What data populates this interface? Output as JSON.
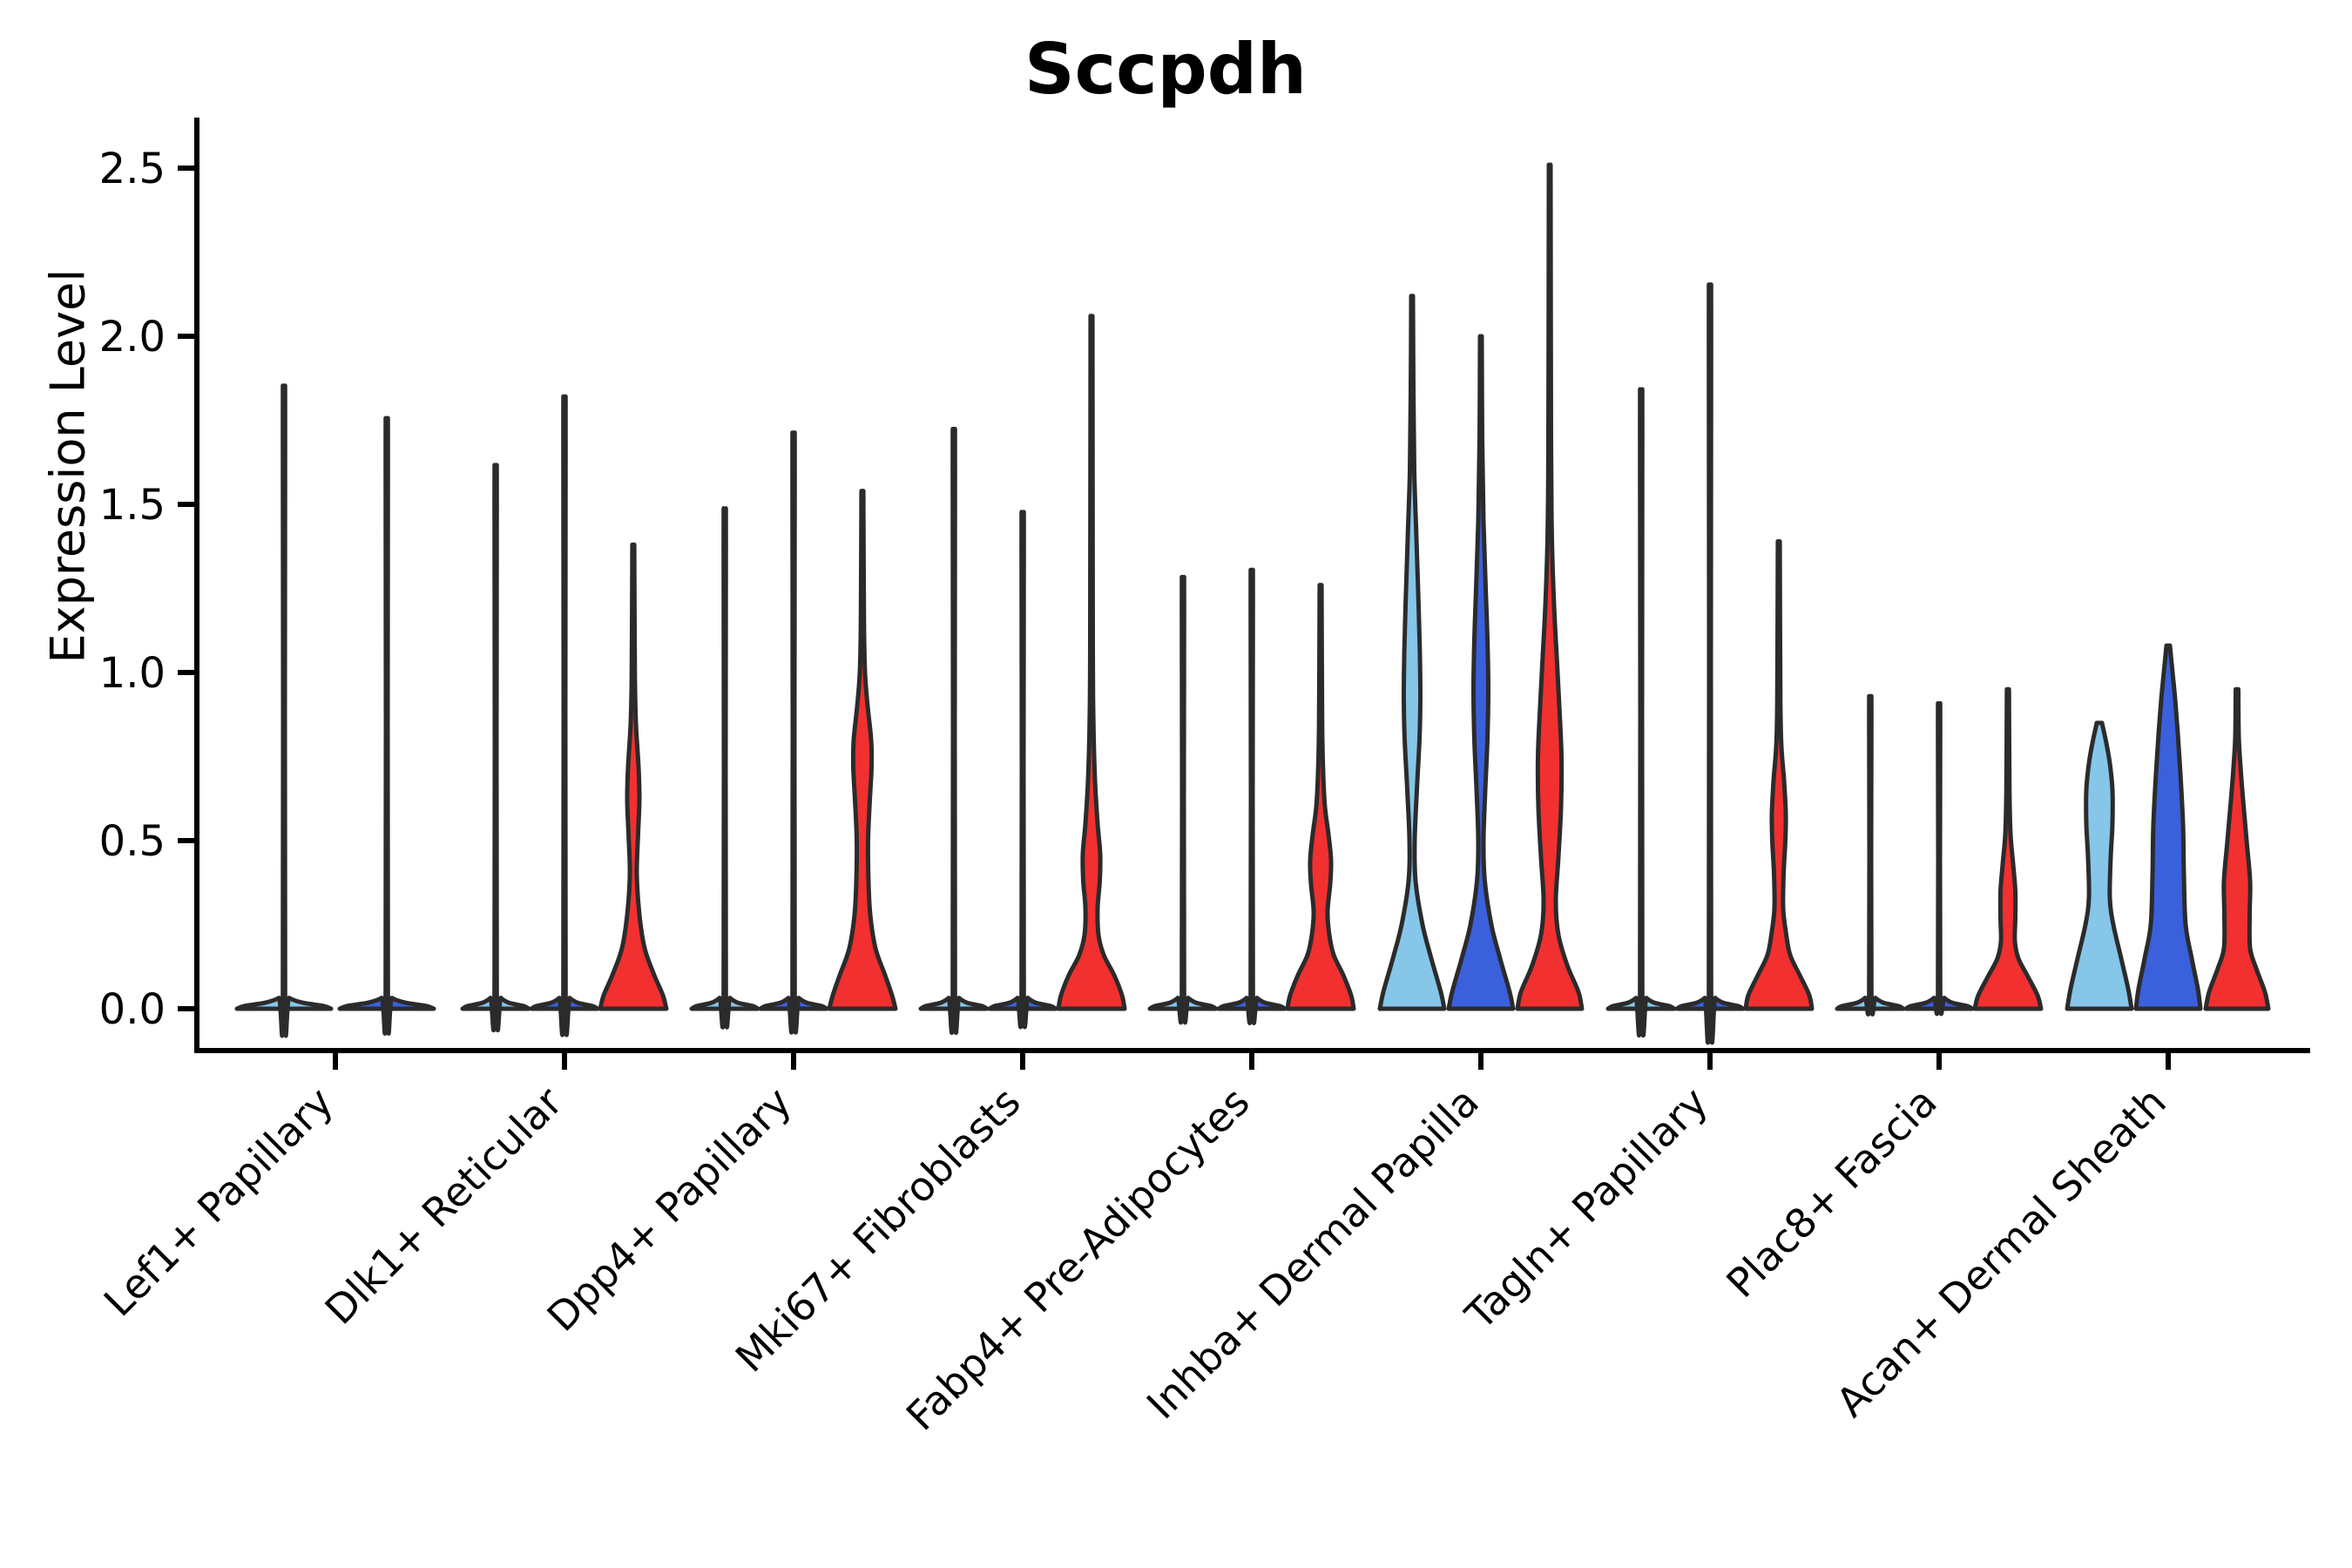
{
  "title": "Sccpdh",
  "axes": {
    "ylabel": "Expression Level",
    "ytick_labels": [
      "0.0",
      "0.5",
      "1.0",
      "1.5",
      "2.0",
      "2.5"
    ],
    "ytick_values": [
      0,
      0.5,
      1.0,
      1.5,
      2.0,
      2.5
    ]
  },
  "colors": {
    "light_blue": "#85C6E9",
    "dark_blue": "#3A60DC",
    "red": "#F23030",
    "outline": "#2B2B2B",
    "axis": "#000000"
  },
  "chart_data": {
    "type": "violin",
    "title": "Sccpdh",
    "xlabel": "",
    "ylabel": "Expression Level",
    "ylim": [
      0,
      2.6
    ],
    "yticks": [
      0,
      0.5,
      1.0,
      1.5,
      2.0,
      2.5
    ],
    "grid": false,
    "legend": "none",
    "series_colors": [
      "#85C6E9",
      "#3A60DC",
      "#F23030"
    ],
    "categories": [
      "Lef1+ Papillary",
      "Dlk1+ Reticular",
      "Dpp4+ Papillary",
      "Mki67+ Fibroblasts",
      "Fabp4+ Pre-Adipocytes",
      "Inhba+ Dermal Papilla",
      "Tagln+ Papillary",
      "Plac8+ Fascia",
      "Acan+ Dermal Sheath"
    ],
    "violins": [
      {
        "category": "Lef1+ Papillary",
        "groups": [
          {
            "color_key": "light_blue",
            "max": 1.75,
            "shape": "line"
          },
          {
            "color_key": "dark_blue",
            "max": 1.66,
            "shape": "line"
          }
        ]
      },
      {
        "category": "Dlk1+ Reticular",
        "groups": [
          {
            "color_key": "light_blue",
            "max": 1.53,
            "shape": "line"
          },
          {
            "color_key": "dark_blue",
            "max": 1.72,
            "shape": "line"
          },
          {
            "color_key": "red",
            "max": 1.38,
            "shape": "profile",
            "profile": [
              [
                0,
                38
              ],
              [
                0.04,
                34
              ],
              [
                0.1,
                24
              ],
              [
                0.18,
                13
              ],
              [
                0.28,
                7
              ],
              [
                0.4,
                4
              ],
              [
                0.52,
                5.5
              ],
              [
                0.62,
                7
              ],
              [
                0.72,
                6
              ],
              [
                0.85,
                3
              ],
              [
                1.0,
                1.8
              ],
              [
                1.38,
                1.1
              ]
            ]
          }
        ]
      },
      {
        "category": "Dpp4+ Papillary",
        "groups": [
          {
            "color_key": "light_blue",
            "max": 1.41,
            "shape": "line"
          },
          {
            "color_key": "dark_blue",
            "max": 1.62,
            "shape": "line"
          },
          {
            "color_key": "red",
            "max": 1.54,
            "shape": "profile",
            "profile": [
              [
                0,
                38
              ],
              [
                0.04,
                34
              ],
              [
                0.1,
                26
              ],
              [
                0.18,
                15
              ],
              [
                0.28,
                9
              ],
              [
                0.38,
                7
              ],
              [
                0.5,
                6.5
              ],
              [
                0.62,
                8.5
              ],
              [
                0.72,
                10.5
              ],
              [
                0.8,
                10
              ],
              [
                0.9,
                6
              ],
              [
                1.0,
                3
              ],
              [
                1.15,
                1.8
              ],
              [
                1.54,
                1.1
              ]
            ]
          }
        ]
      },
      {
        "category": "Mki67+ Fibroblasts",
        "groups": [
          {
            "color_key": "light_blue",
            "max": 1.63,
            "shape": "line"
          },
          {
            "color_key": "dark_blue",
            "max": 1.4,
            "shape": "line"
          },
          {
            "color_key": "red",
            "max": 2.06,
            "shape": "profile",
            "profile": [
              [
                0,
                38
              ],
              [
                0.04,
                35
              ],
              [
                0.1,
                26
              ],
              [
                0.16,
                14
              ],
              [
                0.22,
                8
              ],
              [
                0.3,
                7
              ],
              [
                0.38,
                9.5
              ],
              [
                0.46,
                10
              ],
              [
                0.55,
                7
              ],
              [
                0.68,
                4
              ],
              [
                0.85,
                2.2
              ],
              [
                1.1,
                1.5
              ],
              [
                2.06,
                1.1
              ]
            ]
          }
        ]
      },
      {
        "category": "Fabp4+ Pre-Adipocytes",
        "groups": [
          {
            "color_key": "light_blue",
            "max": 1.22,
            "shape": "line"
          },
          {
            "color_key": "dark_blue",
            "max": 1.24,
            "shape": "line"
          },
          {
            "color_key": "red",
            "max": 1.26,
            "shape": "profile",
            "profile": [
              [
                0,
                38
              ],
              [
                0.04,
                35
              ],
              [
                0.1,
                26
              ],
              [
                0.16,
                15
              ],
              [
                0.22,
                10
              ],
              [
                0.29,
                8
              ],
              [
                0.37,
                11
              ],
              [
                0.44,
                12
              ],
              [
                0.52,
                9
              ],
              [
                0.6,
                5
              ],
              [
                0.7,
                3
              ],
              [
                0.85,
                1.8
              ],
              [
                1.26,
                1.1
              ]
            ]
          }
        ]
      },
      {
        "category": "Inhba+ Dermal Papilla",
        "groups": [
          {
            "color_key": "light_blue",
            "max": 2.12,
            "shape": "profile",
            "profile": [
              [
                0,
                37
              ],
              [
                0.05,
                33
              ],
              [
                0.15,
                22
              ],
              [
                0.25,
                12
              ],
              [
                0.38,
                4
              ],
              [
                0.5,
                3
              ],
              [
                0.65,
                5.5
              ],
              [
                0.8,
                8.5
              ],
              [
                0.92,
                9.5
              ],
              [
                1.05,
                9
              ],
              [
                1.2,
                7.5
              ],
              [
                1.4,
                5
              ],
              [
                1.6,
                2.5
              ],
              [
                1.85,
                1.5
              ],
              [
                2.12,
                1
              ]
            ]
          },
          {
            "color_key": "dark_blue",
            "max": 2.0,
            "shape": "profile",
            "profile": [
              [
                0,
                37
              ],
              [
                0.05,
                33
              ],
              [
                0.15,
                22
              ],
              [
                0.25,
                12
              ],
              [
                0.38,
                4.5
              ],
              [
                0.5,
                3
              ],
              [
                0.65,
                5
              ],
              [
                0.8,
                7.5
              ],
              [
                0.95,
                8.5
              ],
              [
                1.1,
                7.5
              ],
              [
                1.25,
                5.5
              ],
              [
                1.45,
                3
              ],
              [
                1.7,
                1.5
              ],
              [
                2.0,
                1
              ]
            ]
          },
          {
            "color_key": "red",
            "max": 2.51,
            "shape": "profile",
            "profile": [
              [
                0,
                37
              ],
              [
                0.05,
                33
              ],
              [
                0.13,
                20
              ],
              [
                0.22,
                10
              ],
              [
                0.32,
                7
              ],
              [
                0.45,
                10
              ],
              [
                0.6,
                13
              ],
              [
                0.75,
                13.5
              ],
              [
                0.9,
                11
              ],
              [
                1.05,
                8
              ],
              [
                1.2,
                5
              ],
              [
                1.4,
                2.5
              ],
              [
                1.7,
                1.5
              ],
              [
                2.51,
                1
              ]
            ]
          }
        ]
      },
      {
        "category": "Tagln+ Papillary",
        "groups": [
          {
            "color_key": "light_blue",
            "max": 1.74,
            "shape": "line"
          },
          {
            "color_key": "dark_blue",
            "max": 2.03,
            "shape": "line"
          },
          {
            "color_key": "red",
            "max": 1.39,
            "shape": "profile",
            "profile": [
              [
                0,
                38
              ],
              [
                0.04,
                35
              ],
              [
                0.1,
                24
              ],
              [
                0.16,
                13
              ],
              [
                0.23,
                8
              ],
              [
                0.3,
                5
              ],
              [
                0.4,
                5.5
              ],
              [
                0.5,
                7.5
              ],
              [
                0.58,
                8
              ],
              [
                0.68,
                6
              ],
              [
                0.78,
                3
              ],
              [
                0.92,
                1.8
              ],
              [
                1.39,
                1.1
              ]
            ]
          }
        ]
      },
      {
        "category": "Plac8+ Fascia",
        "groups": [
          {
            "color_key": "light_blue",
            "max": 0.89,
            "shape": "line"
          },
          {
            "color_key": "dark_blue",
            "max": 0.87,
            "shape": "line"
          },
          {
            "color_key": "red",
            "max": 0.95,
            "shape": "profile",
            "profile": [
              [
                0,
                38
              ],
              [
                0.04,
                34
              ],
              [
                0.1,
                22
              ],
              [
                0.15,
                12
              ],
              [
                0.2,
                8
              ],
              [
                0.27,
                8.5
              ],
              [
                0.35,
                8.5
              ],
              [
                0.43,
                6
              ],
              [
                0.52,
                3
              ],
              [
                0.65,
                1.8
              ],
              [
                0.95,
                1.2
              ]
            ]
          }
        ]
      },
      {
        "category": "Acan+ Dermal Sheath",
        "groups": [
          {
            "color_key": "light_blue",
            "max": 0.85,
            "shape": "profile",
            "profile": [
              [
                0,
                37
              ],
              [
                0.06,
                33
              ],
              [
                0.15,
                25
              ],
              [
                0.25,
                16
              ],
              [
                0.33,
                12
              ],
              [
                0.45,
                13
              ],
              [
                0.55,
                15
              ],
              [
                0.65,
                15
              ],
              [
                0.73,
                12
              ],
              [
                0.79,
                8
              ],
              [
                0.85,
                3
              ]
            ]
          },
          {
            "color_key": "dark_blue",
            "max": 1.08,
            "shape": "profile",
            "profile": [
              [
                0,
                37
              ],
              [
                0.06,
                34
              ],
              [
                0.15,
                27
              ],
              [
                0.25,
                20
              ],
              [
                0.4,
                18
              ],
              [
                0.55,
                17
              ],
              [
                0.7,
                14
              ],
              [
                0.82,
                11
              ],
              [
                0.92,
                8
              ],
              [
                1.0,
                5
              ],
              [
                1.08,
                2
              ]
            ]
          },
          {
            "color_key": "red",
            "max": 0.95,
            "shape": "profile",
            "profile": [
              [
                0,
                36
              ],
              [
                0.05,
                32
              ],
              [
                0.12,
                22
              ],
              [
                0.18,
                15
              ],
              [
                0.28,
                14.5
              ],
              [
                0.38,
                15
              ],
              [
                0.5,
                11
              ],
              [
                0.62,
                7
              ],
              [
                0.72,
                4
              ],
              [
                0.81,
                2
              ],
              [
                0.95,
                1.5
              ]
            ]
          }
        ]
      }
    ]
  }
}
